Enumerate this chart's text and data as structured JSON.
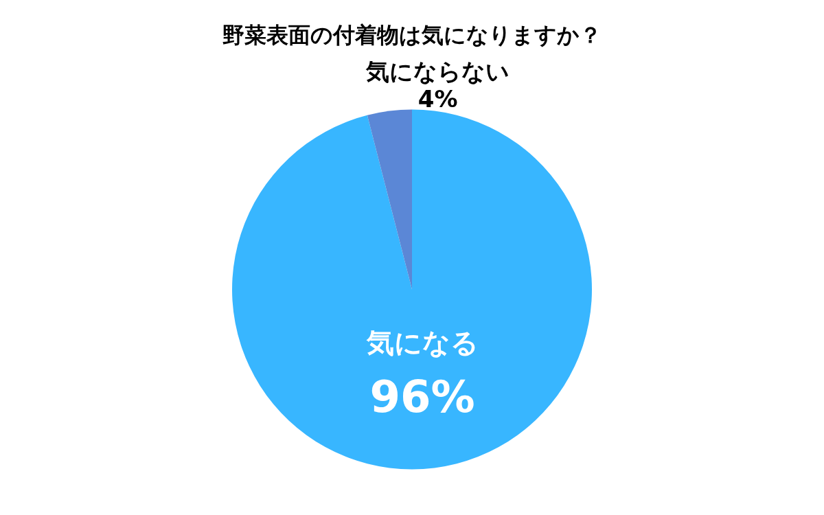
{
  "chart_data": {
    "type": "pie",
    "title": "野菜表面の付着物は気になりますか？",
    "categories": [
      "気になる",
      "気にならない"
    ],
    "values": [
      96,
      4
    ],
    "colors": [
      "#38b6ff",
      "#5b87d6"
    ],
    "value_labels": [
      "96%",
      "4%"
    ],
    "legend": false
  }
}
